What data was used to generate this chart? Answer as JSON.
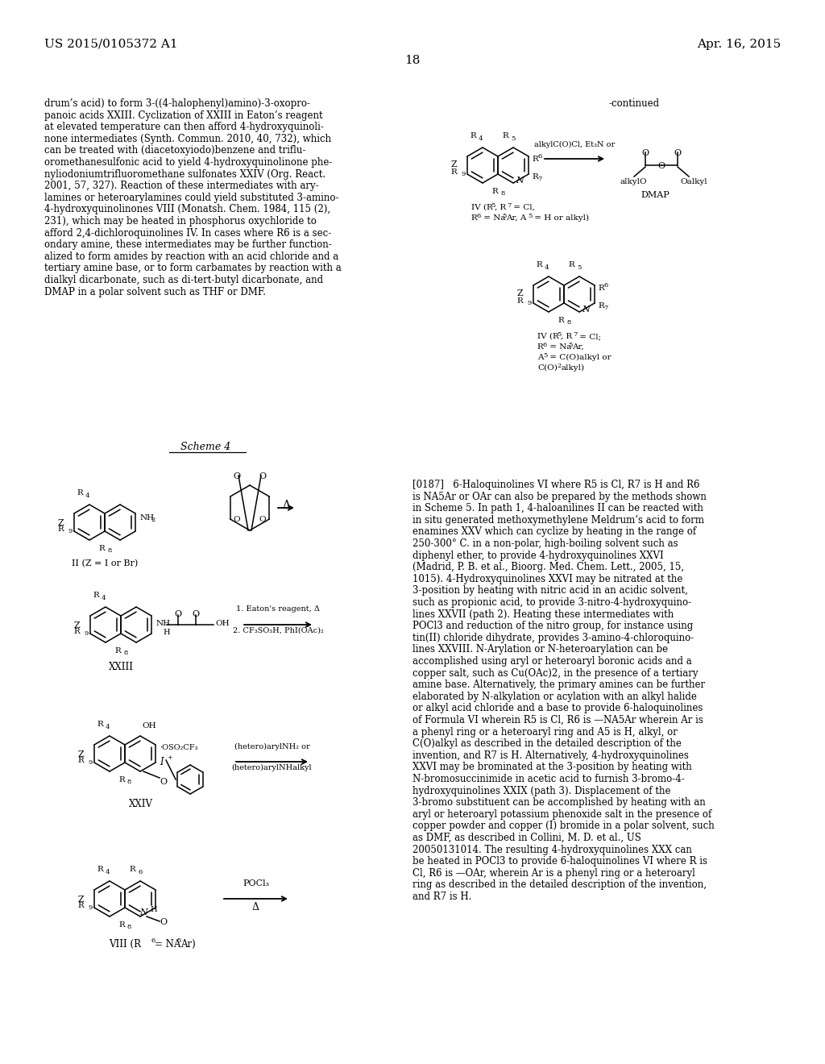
{
  "page_number": "18",
  "patent_number": "US 2015/0105372 A1",
  "patent_date": "Apr. 16, 2015",
  "background_color": "#ffffff",
  "text_color": "#000000",
  "left_column_text": [
    "drum’s acid) to form 3-((4-halophenyl)amino)-3-oxopro-",
    "panoic acids XXIII. Cyclization of XXIII in Eaton’s reagent",
    "at elevated temperature can then afford 4-hydroxyquinoli-",
    "none intermediates (Synth. Commun. 2010, 40, 732), which",
    "can be treated with (diacetoxyiodo)benzene and triflu-",
    "oromethanesulfonic acid to yield 4-hydroxyquinolinone phe-",
    "nyliodoniumtrifluoromethane sulfonates XXIV (Org. React.",
    "2001, 57, 327). Reaction of these intermediates with ary-",
    "lamines or heteroarylamines could yield substituted 3-amino-",
    "4-hydroxyquinolinones VIII (Monatsh. Chem. 1984, 115 (2),",
    "231), which may be heated in phosphorus oxychloride to",
    "afford 2,4-dichloroquinolines IV. In cases where R6 is a sec-",
    "ondary amine, these intermediates may be further function-",
    "alized to form amides by reaction with an acid chloride and a",
    "tertiary amine base, or to form carbamates by reaction with a",
    "dialkyl dicarbonate, such as di-tert-butyl dicarbonate, and",
    "DMAP in a polar solvent such as THF or DMF."
  ],
  "right_column_text": [
    "[0187]   6-Haloquinolines VI where R5 is Cl, R7 is H and R6",
    "is NA5Ar or OAr can also be prepared by the methods shown",
    "in Scheme 5. In path 1, 4-haloanilines II can be reacted with",
    "in situ generated methoxymethylene Meldrum’s acid to form",
    "enamines XXV which can cyclize by heating in the range of",
    "250-300° C. in a non-polar, high-boiling solvent such as",
    "diphenyl ether, to provide 4-hydroxyquinolines XXVI",
    "(Madrid, P. B. et al., Bioorg. Med. Chem. Lett., 2005, 15,",
    "1015). 4-Hydroxyquinolines XXVI may be nitrated at the",
    "3-position by heating with nitric acid in an acidic solvent,",
    "such as propionic acid, to provide 3-nitro-4-hydroxyquino-",
    "lines XXVII (path 2). Heating these intermediates with",
    "POCl3 and reduction of the nitro group, for instance using",
    "tin(II) chloride dihydrate, provides 3-amino-4-chloroquino-",
    "lines XXVIII. N-Arylation or N-heteroarylation can be",
    "accomplished using aryl or heteroaryl boronic acids and a",
    "copper salt, such as Cu(OAc)2, in the presence of a tertiary",
    "amine base. Alternatively, the primary amines can be further",
    "elaborated by N-alkylation or acylation with an alkyl halide",
    "or alkyl acid chloride and a base to provide 6-haloquinolines",
    "of Formula VI wherein R5 is Cl, R6 is —NA5Ar wherein Ar is",
    "a phenyl ring or a heteroaryl ring and A5 is H, alkyl, or",
    "C(O)alkyl as described in the detailed description of the",
    "invention, and R7 is H. Alternatively, 4-hydroxyquinolines",
    "XXVI may be brominated at the 3-position by heating with",
    "N-bromosuccinimide in acetic acid to furnish 3-bromo-4-",
    "hydroxyquinolines XXIX (path 3). Displacement of the",
    "3-bromo substituent can be accomplished by heating with an",
    "aryl or heteroaryl potassium phenoxide salt in the presence of",
    "copper powder and copper (I) bromide in a polar solvent, such",
    "as DMF, as described in Collini, M. D. et al., US",
    "20050131014. The resulting 4-hydroxyquinolines XXX can",
    "be heated in POCl3 to provide 6-haloquinolines VI where R is",
    "Cl, R6 is —OAr, wherein Ar is a phenyl ring or a heteroaryl",
    "ring as described in the detailed description of the invention,",
    "and R7 is H."
  ]
}
